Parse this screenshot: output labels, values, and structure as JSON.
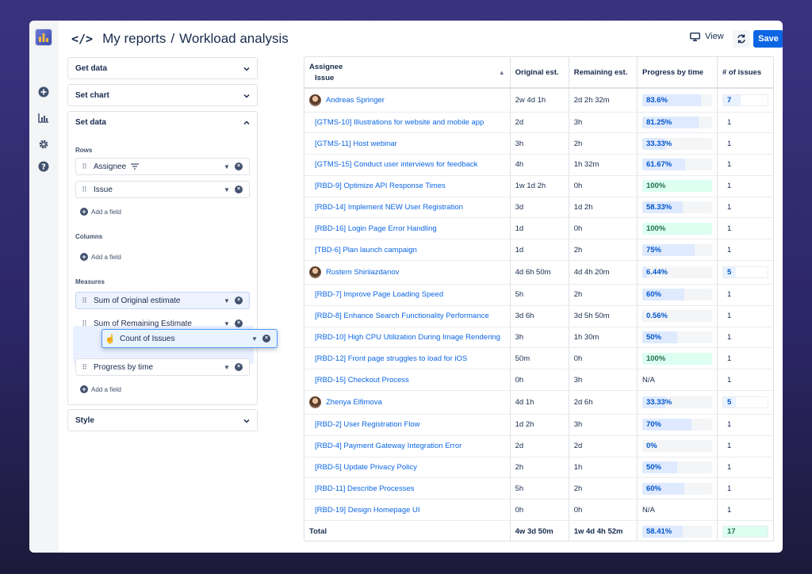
{
  "header": {
    "breadcrumb_root": "My reports",
    "separator": "/",
    "page_title": "Workload analysis",
    "view_label": "View",
    "save_label": "Save",
    "more_label": "•••"
  },
  "sidebar": {
    "panels": {
      "get_data": "Get data",
      "set_chart": "Set chart",
      "set_data": "Set data",
      "style": "Style"
    },
    "rows_label": "Rows",
    "rows": [
      "Assignee",
      "Issue"
    ],
    "columns_label": "Columns",
    "measures_label": "Measures",
    "measures": [
      "Sum of Original estimate",
      "Sum of Remaining Estimate",
      "Progress by time"
    ],
    "dragging": "Count of Issues",
    "add_field": "Add a field"
  },
  "table": {
    "headers": {
      "assignee": "Assignee",
      "issue": "Issue",
      "original": "Original est.",
      "remaining": "Remaining est.",
      "progress": "Progress by time",
      "count": "# of issues"
    },
    "groups": [
      {
        "name": "Andreas Springer",
        "original": "2w 4d 1h",
        "remaining": "2d 2h 32m",
        "progress": "83.6%",
        "progress_value": 83.6,
        "count": "7",
        "issues": [
          {
            "name": "[GTMS-10] Illustrations for website and mobile app",
            "original": "2d",
            "remaining": "3h",
            "progress": "81.25%",
            "progress_value": 81.25,
            "count": "1"
          },
          {
            "name": "[GTMS-11] Host webinar",
            "original": "3h",
            "remaining": "2h",
            "progress": "33.33%",
            "progress_value": 33.33,
            "count": "1"
          },
          {
            "name": "[GTMS-15] Conduct user interviews for feedback",
            "original": "4h",
            "remaining": "1h 32m",
            "progress": "61.67%",
            "progress_value": 61.67,
            "count": "1"
          },
          {
            "name": "[RBD-9] Optimize API Response Times",
            "original": "1w 1d 2h",
            "remaining": "0h",
            "progress": "100%",
            "progress_value": 100,
            "count": "1"
          },
          {
            "name": "[RBD-14] Implement NEW User Registration",
            "original": "3d",
            "remaining": "1d 2h",
            "progress": "58.33%",
            "progress_value": 58.33,
            "count": "1"
          },
          {
            "name": "[RBD-16] Login Page Error Handling",
            "original": "1d",
            "remaining": "0h",
            "progress": "100%",
            "progress_value": 100,
            "count": "1"
          },
          {
            "name": "[TBD-6] Plan launch campaign",
            "original": "1d",
            "remaining": "2h",
            "progress": "75%",
            "progress_value": 75,
            "count": "1"
          }
        ]
      },
      {
        "name": "Rustem Shiriiazdanov",
        "original": "4d 6h 50m",
        "remaining": "4d 4h 20m",
        "progress": "6.44%",
        "progress_value": 6.44,
        "count": "5",
        "issues": [
          {
            "name": "[RBD-7] Improve Page Loading Speed",
            "original": "5h",
            "remaining": "2h",
            "progress": "60%",
            "progress_value": 60,
            "count": "1"
          },
          {
            "name": "[RBD-8] Enhance Search Functionality Performance",
            "original": "3d 6h",
            "remaining": "3d 5h 50m",
            "progress": "0.56%",
            "progress_value": 0.56,
            "count": "1"
          },
          {
            "name": "[RBD-10] High CPU Utilization During Image Rendering",
            "original": "3h",
            "remaining": "1h 30m",
            "progress": "50%",
            "progress_value": 50,
            "count": "1"
          },
          {
            "name": "[RBD-12] Front page struggles to load for iOS",
            "original": "50m",
            "remaining": "0h",
            "progress": "100%",
            "progress_value": 100,
            "count": "1"
          },
          {
            "name": "[RBD-15] Checkout Process",
            "original": "0h",
            "remaining": "3h",
            "progress": "N/A",
            "progress_value": null,
            "count": "1"
          }
        ]
      },
      {
        "name": "Zhenya Elfimova",
        "original": "4d 1h",
        "remaining": "2d 6h",
        "progress": "33.33%",
        "progress_value": 33.33,
        "count": "5",
        "issues": [
          {
            "name": "[RBD-2] User Registration Flow",
            "original": "1d 2h",
            "remaining": "3h",
            "progress": "70%",
            "progress_value": 70,
            "count": "1"
          },
          {
            "name": "[RBD-4] Payment Gateway Integration Error",
            "original": "2d",
            "remaining": "2d",
            "progress": "0%",
            "progress_value": 0,
            "count": "1"
          },
          {
            "name": "[RBD-5] Update Privacy Policy",
            "original": "2h",
            "remaining": "1h",
            "progress": "50%",
            "progress_value": 50,
            "count": "1"
          },
          {
            "name": "[RBD-11] Describe Processes",
            "original": "5h",
            "remaining": "2h",
            "progress": "60%",
            "progress_value": 60,
            "count": "1"
          },
          {
            "name": "[RBD-19] Design Homepage UI",
            "original": "0h",
            "remaining": "0h",
            "progress": "N/A",
            "progress_value": null,
            "count": "1"
          }
        ]
      }
    ],
    "total": {
      "label": "Total",
      "original": "4w 3d 50m",
      "remaining": "1w 4d 4h 52m",
      "progress": "58.41%",
      "progress_value": 58.41,
      "count": "17"
    }
  },
  "colors": {
    "accent": "#0c66e4",
    "progress_fill": "#dfeafe",
    "complete_fill": "#dcfff1"
  }
}
